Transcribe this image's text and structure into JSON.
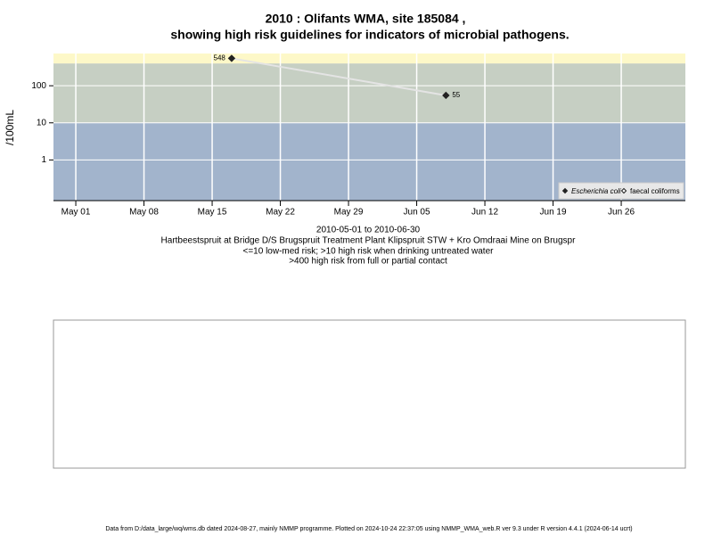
{
  "chart_data": {
    "type": "line",
    "title": [
      "2010 : Olifants WMA, site 185084 ,",
      "showing high risk guidelines for indicators of microbial pathogens."
    ],
    "y_label": "/100mL",
    "subtitle": [
      "2010-05-01 to 2010-06-30",
      "Hartbeestspruit at Bridge D/S Brugspruit Treatment Plant Klipspruit STW + Kro Omdraai Mine on Brugspr",
      "<=10 low-med risk; >10 high risk when drinking untreated water",
      ">400 high risk from full or partial contact"
    ],
    "footer": "Data from D:/data_large/wq/wms.db dated 2024-08-27, mainly NMMP programme. Plotted on 2024-10-24 22:37:05 using NMMP_WMA_web.R ver 9.3 under R version 4.4.1 (2024-06-14 ucrt)",
    "log_y": true,
    "grid": true,
    "legend_position": "bottom-right",
    "thresholds": [
      10,
      400
    ],
    "band_colors": [
      "#a2b4cc",
      "#c6cfc3",
      "#fdf8c8"
    ],
    "x": [
      "2010-05-17",
      "2010-06-08"
    ],
    "series": [
      {
        "name": "Escherichia coli",
        "color": "#222222",
        "values": [
          548,
          55
        ]
      },
      {
        "name": "faecal coliforms",
        "color": "#222222",
        "values": [
          null,
          null
        ]
      }
    ],
    "xlim": [
      "2010-04-28T17:00Z",
      "2010-07-02T14:00Z"
    ],
    "xticks": [
      {
        "value": "2010-05-01",
        "label": "May 01"
      },
      {
        "value": "2010-05-08",
        "label": "May 08"
      },
      {
        "value": "2010-05-15",
        "label": "May 15"
      },
      {
        "value": "2010-05-22",
        "label": "May 22"
      },
      {
        "value": "2010-05-29",
        "label": "May 29"
      },
      {
        "value": "2010-06-05",
        "label": "Jun 05"
      },
      {
        "value": "2010-06-12",
        "label": "Jun 12"
      },
      {
        "value": "2010-06-19",
        "label": "Jun 19"
      },
      {
        "value": "2010-06-26",
        "label": "Jun 26"
      }
    ],
    "ylim": [
      0.08,
      740
    ],
    "yticks": [
      1,
      10,
      100
    ]
  }
}
